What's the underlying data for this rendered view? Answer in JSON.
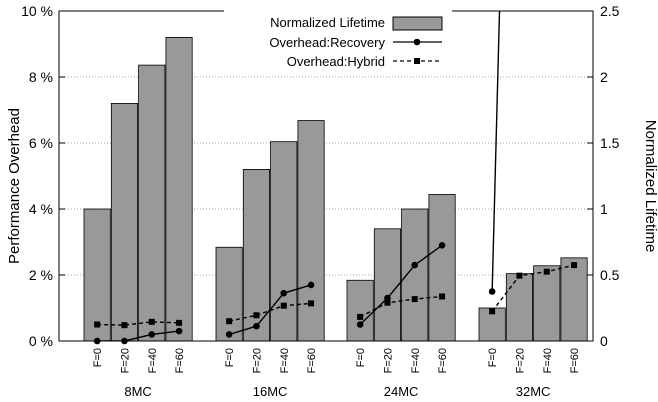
{
  "chart_data": {
    "type": "bar",
    "title": "",
    "ylabel": "Performance Overhead",
    "y2label": "Normalized Lifetime",
    "ylim": [
      0,
      10
    ],
    "y2lim": [
      0,
      2.5
    ],
    "yticks": [
      {
        "value": 0,
        "label": "0 %"
      },
      {
        "value": 2,
        "label": "2 %"
      },
      {
        "value": 4,
        "label": "4 %"
      },
      {
        "value": 6,
        "label": "6 %"
      },
      {
        "value": 8,
        "label": "8 %"
      },
      {
        "value": 10,
        "label": "10 %"
      }
    ],
    "y2ticks": [
      {
        "value": 0,
        "label": "0"
      },
      {
        "value": 0.5,
        "label": "0.5"
      },
      {
        "value": 1,
        "label": "1"
      },
      {
        "value": 1.5,
        "label": "1.5"
      },
      {
        "value": 2,
        "label": "2"
      },
      {
        "value": 2.5,
        "label": "2.5"
      }
    ],
    "grid": "horizontal dotted",
    "legend_position": "top-center",
    "groups": [
      "8MC",
      "16MC",
      "24MC",
      "32MC"
    ],
    "subcategories": [
      "F=0",
      "F=20",
      "F=40",
      "F=60"
    ],
    "series": [
      {
        "name": "Normalized Lifetime",
        "kind": "bar",
        "axis": "right",
        "color": "#999999",
        "values": [
          [
            1.0,
            1.8,
            2.09,
            2.3
          ],
          [
            0.71,
            1.3,
            1.51,
            1.67
          ],
          [
            0.46,
            0.85,
            1.0,
            1.11
          ],
          [
            0.25,
            0.51,
            0.57,
            0.63
          ]
        ]
      },
      {
        "name": "Overhead:Recovery",
        "kind": "line",
        "style": "solid",
        "marker": "circle",
        "axis": "left",
        "color": "#000000",
        "values": [
          [
            0.0,
            0.0,
            0.2,
            0.3
          ],
          [
            0.2,
            0.45,
            1.45,
            1.7
          ],
          [
            0.5,
            1.3,
            2.3,
            2.9
          ],
          [
            1.5,
            33.0,
            null,
            null
          ]
        ]
      },
      {
        "name": "Overhead:Hybrid",
        "kind": "line",
        "style": "dashed",
        "marker": "square",
        "axis": "left",
        "color": "#000000",
        "values": [
          [
            0.5,
            0.48,
            0.58,
            0.55
          ],
          [
            0.6,
            0.78,
            1.07,
            1.14
          ],
          [
            0.73,
            1.16,
            1.27,
            1.35
          ],
          [
            0.9,
            1.98,
            2.1,
            2.3
          ]
        ]
      }
    ]
  }
}
